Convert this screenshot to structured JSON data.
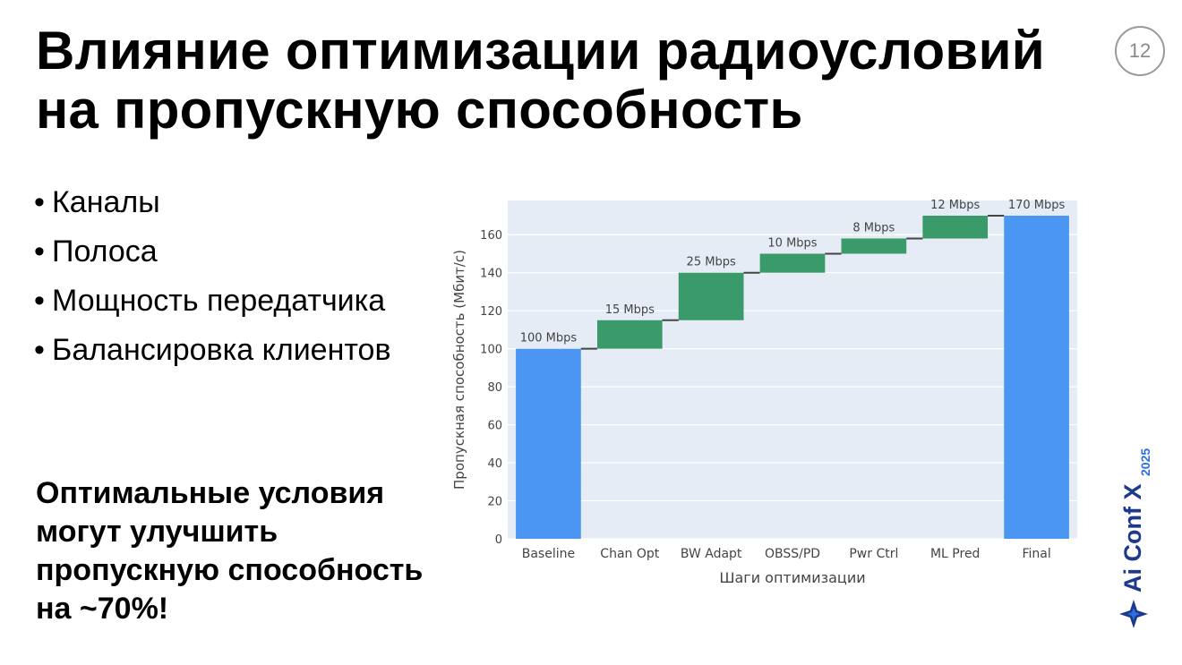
{
  "slide": {
    "title": "Влияние оптимизации радиоусловий на пропускную способность",
    "page_number": "12",
    "bullets": [
      "Каналы",
      "Полоса",
      "Мощность передатчика",
      "Балансировка клиентов"
    ],
    "conclusion": "Оптимальные условия могут улучшить пропускную способность на ~70%!",
    "logo_text": "Ai Conf X",
    "logo_year": "2025"
  },
  "chart_data": {
    "type": "bar",
    "subtype": "waterfall",
    "categories": [
      "Baseline",
      "Chan Opt",
      "BW Adapt",
      "OBSS/PD",
      "Pwr Ctrl",
      "ML Pred",
      "Final"
    ],
    "measures": [
      "absolute",
      "relative",
      "relative",
      "relative",
      "relative",
      "relative",
      "total"
    ],
    "values": [
      100,
      15,
      25,
      10,
      8,
      12,
      170
    ],
    "data_labels": [
      "100 Mbps",
      "15 Mbps",
      "25 Mbps",
      "10 Mbps",
      "8 Mbps",
      "12 Mbps",
      "170 Mbps"
    ],
    "xlabel": "Шаги оптимизации",
    "ylabel": "Пропускная способность (Мбит/с)",
    "ylim": [
      0,
      178
    ],
    "yticks": [
      0,
      20,
      40,
      60,
      80,
      100,
      120,
      140,
      160
    ],
    "grid": true,
    "colors": {
      "total": "#4a96f2",
      "increase": "#3b9a6a",
      "plot_bg": "#e5ecf6",
      "connector": "#444444"
    }
  }
}
